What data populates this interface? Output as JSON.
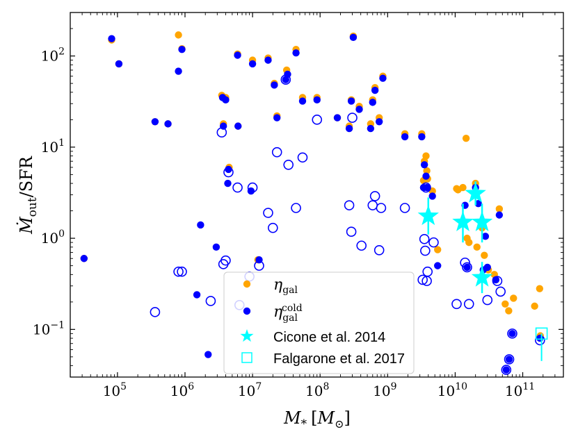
{
  "chart_data": {
    "type": "scatter",
    "title": "",
    "xlabel": {
      "main": "M",
      "sub": "*",
      "unit_open": "[",
      "unit_main": "M",
      "unit_sub": "⊙",
      "unit_close": "]"
    },
    "ylabel": {
      "main": "Ṁ",
      "sub": "out",
      "rest": "/SFR"
    },
    "xscale": "log",
    "yscale": "log",
    "xlim": [
      20000,
      400000000000
    ],
    "ylim": [
      0.03,
      300
    ],
    "xticks": [
      {
        "value": 100000,
        "base": "10",
        "exp": "5"
      },
      {
        "value": 1000000,
        "base": "10",
        "exp": "6"
      },
      {
        "value": 10000000,
        "base": "10",
        "exp": "7"
      },
      {
        "value": 100000000,
        "base": "10",
        "exp": "8"
      },
      {
        "value": 1000000000,
        "base": "10",
        "exp": "9"
      },
      {
        "value": 10000000000,
        "base": "10",
        "exp": "10"
      },
      {
        "value": 100000000000,
        "base": "10",
        "exp": "11"
      }
    ],
    "yticks": [
      {
        "value": 0.1,
        "base": "10",
        "exp": "−1"
      },
      {
        "value": 1,
        "base": "10",
        "exp": "0"
      },
      {
        "value": 10,
        "base": "10",
        "exp": "1"
      },
      {
        "value": 100,
        "base": "10",
        "exp": "2"
      }
    ],
    "colors": {
      "orange": "#ffa500",
      "blue": "#0000ff",
      "cyan": "#00ffff"
    },
    "series": [
      {
        "name": "eta_gal",
        "marker": "filled-circle",
        "color": "#ffa500",
        "points": [
          [
            32000,
            0.6
          ],
          [
            82000,
            150
          ],
          [
            105000,
            82
          ],
          [
            360000,
            19
          ],
          [
            560000,
            18
          ],
          [
            800000,
            170
          ],
          [
            900000,
            120
          ],
          [
            3500000,
            37
          ],
          [
            3700000,
            18
          ],
          [
            4000000,
            35
          ],
          [
            4500000,
            6
          ],
          [
            6000000,
            105
          ],
          [
            6100000,
            17
          ],
          [
            10000000,
            90
          ],
          [
            12000000,
            0.58
          ],
          [
            17000000,
            95
          ],
          [
            21000000,
            50
          ],
          [
            23000000,
            22
          ],
          [
            32000000,
            70
          ],
          [
            44000000,
            118
          ],
          [
            55000000,
            35
          ],
          [
            90000000,
            35
          ],
          [
            180000000,
            21
          ],
          [
            270000000,
            17
          ],
          [
            290000000,
            33
          ],
          [
            310000000,
            165
          ],
          [
            380000000,
            28
          ],
          [
            560000000,
            18
          ],
          [
            600000000,
            33
          ],
          [
            650000000,
            45
          ],
          [
            750000000,
            21
          ],
          [
            850000000,
            60
          ],
          [
            1800000000,
            14
          ],
          [
            3200000000,
            14
          ],
          [
            3400000000,
            4.3
          ],
          [
            3500000000,
            7
          ],
          [
            3700000000,
            8
          ],
          [
            3800000000,
            5.5
          ],
          [
            3900000000,
            4.5
          ],
          [
            4600000000,
            3.3
          ],
          [
            5500000000,
            0.75
          ],
          [
            10500000000,
            3.5
          ],
          [
            11000000000,
            3.4
          ],
          [
            13000000000,
            3.6
          ],
          [
            14500000000,
            12.5
          ],
          [
            15000000000,
            1
          ],
          [
            16000000000,
            0.9
          ],
          [
            20000000000,
            4
          ],
          [
            21000000000,
            0.8
          ],
          [
            25000000000,
            1.3
          ],
          [
            27000000000,
            0.65
          ],
          [
            31000000000,
            0.45
          ],
          [
            38000000000,
            0.4
          ],
          [
            45000000000,
            2.1
          ],
          [
            55000000000,
            0.19
          ],
          [
            62000000000,
            0.16
          ],
          [
            73000000000,
            0.22
          ],
          [
            150000000000,
            0.18
          ],
          [
            178000000000,
            0.28
          ],
          [
            182000000000,
            0.085
          ]
        ]
      },
      {
        "name": "eta_gal_cold",
        "marker": "filled-circle",
        "color": "#0000ff",
        "points": [
          [
            32000,
            0.6
          ],
          [
            82000,
            155
          ],
          [
            105000,
            82
          ],
          [
            360000,
            19
          ],
          [
            560000,
            18
          ],
          [
            800000,
            68
          ],
          [
            900000,
            118
          ],
          [
            1500000,
            0.24
          ],
          [
            1700000,
            1.4
          ],
          [
            2200000,
            0.053
          ],
          [
            2900000,
            0.8
          ],
          [
            3600000,
            35
          ],
          [
            3700000,
            17
          ],
          [
            4000000,
            33
          ],
          [
            4300000,
            4
          ],
          [
            4400000,
            5.7
          ],
          [
            6000000,
            102
          ],
          [
            6100000,
            17
          ],
          [
            9500000,
            3.3
          ],
          [
            10000000,
            82
          ],
          [
            12500000,
            0.58
          ],
          [
            17000000,
            90
          ],
          [
            21000000,
            48
          ],
          [
            23000000,
            21
          ],
          [
            31000000,
            55
          ],
          [
            33000000,
            63
          ],
          [
            44000000,
            108
          ],
          [
            55000000,
            32
          ],
          [
            90000000,
            33
          ],
          [
            180000000,
            21
          ],
          [
            270000000,
            16
          ],
          [
            290000000,
            32
          ],
          [
            310000000,
            160
          ],
          [
            380000000,
            26
          ],
          [
            560000000,
            16
          ],
          [
            600000000,
            31
          ],
          [
            650000000,
            42
          ],
          [
            750000000,
            19
          ],
          [
            850000000,
            57
          ],
          [
            1800000000,
            13
          ],
          [
            3200000000,
            13
          ],
          [
            3400000000,
            3.6
          ],
          [
            3500000000,
            6.4
          ],
          [
            3700000000,
            4.8
          ],
          [
            3800000000,
            3.6
          ],
          [
            4600000000,
            2.9
          ],
          [
            5500000000,
            0.5
          ],
          [
            14000000000,
            2.3
          ],
          [
            15000000000,
            0.48
          ],
          [
            20000000000,
            3.6
          ],
          [
            22000000000,
            2.4
          ],
          [
            26000000000,
            0.45
          ],
          [
            28000000000,
            1.05
          ],
          [
            30000000000,
            0.48
          ],
          [
            40000000000,
            0.35
          ],
          [
            45000000000,
            1.8
          ],
          [
            57000000000,
            0.036
          ],
          [
            63000000000,
            0.047
          ],
          [
            70000000000,
            0.09
          ],
          [
            180000000000,
            0.08
          ]
        ]
      },
      {
        "name": "eta_gal_cold_open",
        "marker": "open-circle",
        "color": "#0000ff",
        "points": [
          [
            360000,
            0.155
          ],
          [
            800000,
            0.43
          ],
          [
            900000,
            0.43
          ],
          [
            2400000,
            0.205
          ],
          [
            3500000,
            14.5
          ],
          [
            3700000,
            0.52
          ],
          [
            4000000,
            0.57
          ],
          [
            4400000,
            5.3
          ],
          [
            6000000,
            3.6
          ],
          [
            6400000,
            0.185
          ],
          [
            9000000,
            0.38
          ],
          [
            10000000,
            3.6
          ],
          [
            12500000,
            0.5
          ],
          [
            17000000,
            1.9
          ],
          [
            20000000,
            1.3
          ],
          [
            23000000,
            8.8
          ],
          [
            31000000,
            55
          ],
          [
            34000000,
            6.4
          ],
          [
            44000000,
            2.15
          ],
          [
            55000000,
            7.7
          ],
          [
            90000000,
            20
          ],
          [
            270000000,
            2.3
          ],
          [
            290000000,
            1.18
          ],
          [
            300000000,
            21
          ],
          [
            410000000,
            0.83
          ],
          [
            600000000,
            2.3
          ],
          [
            650000000,
            2.9
          ],
          [
            750000000,
            0.74
          ],
          [
            800000000,
            2.15
          ],
          [
            1800000000,
            2.15
          ],
          [
            3300000000,
            0.35
          ],
          [
            3500000000,
            0.98
          ],
          [
            3600000000,
            0.73
          ],
          [
            3700000000,
            3.6
          ],
          [
            3800000000,
            0.34
          ],
          [
            3900000000,
            0.43
          ],
          [
            4800000000,
            0.9
          ],
          [
            10500000000,
            0.19
          ],
          [
            14000000000,
            0.54
          ],
          [
            15000000000,
            0.48
          ],
          [
            16000000000,
            0.19
          ],
          [
            30000000000,
            0.21
          ],
          [
            42000000000,
            0.34
          ],
          [
            47000000000,
            0.26
          ],
          [
            57000000000,
            0.036
          ],
          [
            63000000000,
            0.047
          ],
          [
            70000000000,
            0.09
          ],
          [
            180000000000,
            0.076
          ]
        ]
      },
      {
        "name": "Cicone et al. 2014",
        "marker": "star",
        "color": "#00ffff",
        "points": [
          {
            "x": 4000000000,
            "y": 1.75,
            "ylo": 1.1,
            "yhi": 2.8
          },
          {
            "x": 13000000000,
            "y": 1.5,
            "ylo": 0.9,
            "yhi": 2.4
          },
          {
            "x": 20000000000,
            "y": 3.1,
            "ylo": 2.3,
            "yhi": 4.2
          },
          {
            "x": 25000000000,
            "y": 1.5,
            "ylo": 0.9,
            "yhi": 2.4
          },
          {
            "x": 25000000000,
            "y": 0.37,
            "ylo": 0.25,
            "yhi": 0.55
          }
        ]
      },
      {
        "name": "Falgarone et al. 2017",
        "marker": "open-square",
        "color": "#00ffff",
        "points": [
          {
            "x": 190000000000,
            "y": 0.09,
            "ylo": 0.045,
            "yhi": 0.09
          }
        ]
      }
    ],
    "legend": {
      "position": "lower-center",
      "entries": [
        {
          "marker": "filled-circle",
          "color": "#ffa500",
          "symbol": "η",
          "sub": "gal",
          "sup": ""
        },
        {
          "marker": "filled-circle",
          "color": "#0000ff",
          "symbol": "η",
          "sub": "gal",
          "sup": "cold"
        },
        {
          "marker": "star",
          "color": "#00ffff",
          "text": "Cicone et al. 2014"
        },
        {
          "marker": "open-square",
          "color": "#00ffff",
          "text": "Falgarone et al. 2017"
        }
      ]
    }
  }
}
